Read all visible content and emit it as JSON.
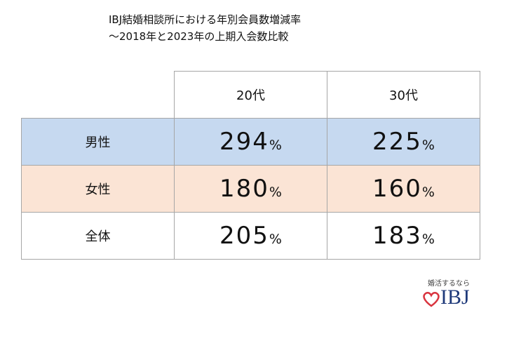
{
  "title": {
    "line1": "IBJ結婚相談所における年別会員数増減率",
    "line2": "～2018年と2023年の上期入会数比較"
  },
  "table": {
    "columns": [
      "20代",
      "30代"
    ],
    "rows": [
      {
        "label": "男性",
        "cells": [
          {
            "value": 294,
            "unit": "%"
          },
          {
            "value": 225,
            "unit": "%"
          }
        ]
      },
      {
        "label": "女性",
        "cells": [
          {
            "value": 180,
            "unit": "%"
          },
          {
            "value": 160,
            "unit": "%"
          }
        ]
      },
      {
        "label": "全体",
        "cells": [
          {
            "value": 205,
            "unit": "%"
          },
          {
            "value": 183,
            "unit": "%"
          }
        ]
      }
    ]
  },
  "logo": {
    "tagline": "婚活するなら",
    "name": "IBJ"
  }
}
